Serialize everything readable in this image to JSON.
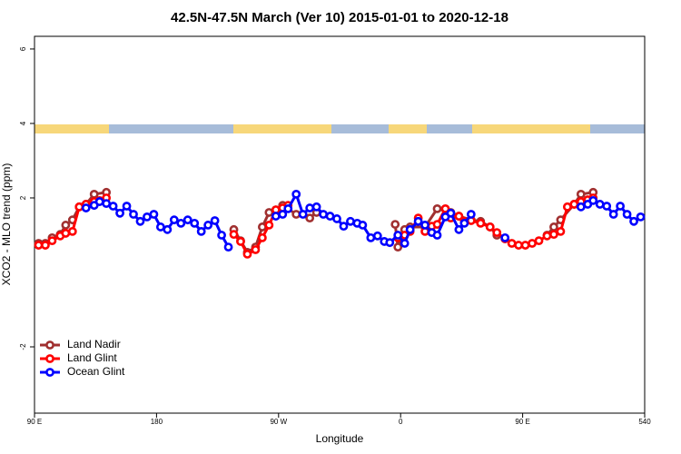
{
  "chart_data": {
    "type": "line",
    "title": "42.5N-47.5N March (Ver 10)   2015-01-01 to 2020-12-18",
    "x_label": "Longitude",
    "y_label": "XCO2 - MLO trend (ppm)",
    "xlim": [
      90,
      540
    ],
    "xticks": [
      {
        "value": 90,
        "label": "90 E"
      },
      180,
      {
        "value": 270,
        "label": "90 W"
      },
      {
        "value": 360,
        "label": "0"
      },
      {
        "value": 450,
        "label": "90 E"
      },
      540
    ],
    "ylim": [
      -3.78,
      6.34
    ],
    "yticks": [
      -2,
      2,
      4,
      6
    ],
    "legend": "bottomleft",
    "grid": false,
    "series": [
      {
        "name": "Land Nadir",
        "color": "#a03030",
        "x": [
          93,
          98,
          103,
          109,
          113,
          118,
          123,
          128,
          134,
          143,
          null,
          237,
          242,
          247,
          253,
          258,
          263,
          268,
          273,
          283,
          293,
          298,
          null,
          356,
          358,
          363,
          367,
          378,
          387,
          397,
          403,
          412,
          419,
          426,
          431,
          null,
          468,
          473,
          478,
          488,
          493,
          502
        ],
        "values": [
          0.78,
          0.78,
          0.93,
          1.02,
          1.27,
          1.41,
          1.76,
          1.83,
          2.1,
          2.15,
          null,
          1.15,
          0.85,
          0.54,
          0.68,
          1.22,
          1.61,
          1.68,
          1.8,
          1.56,
          1.46,
          1.61,
          null,
          1.29,
          0.68,
          1.15,
          1.22,
          1.22,
          1.71,
          1.61,
          1.51,
          1.41,
          1.37,
          1.22,
          1.0,
          null,
          1.0,
          1.22,
          1.41,
          1.83,
          2.1,
          2.15
        ]
      },
      {
        "name": "Land Glint",
        "color": "#ff0000",
        "x": [
          93,
          98,
          103,
          109,
          113,
          118,
          123,
          128,
          134,
          138,
          143,
          null,
          237,
          242,
          247,
          253,
          258,
          263,
          268,
          273,
          277,
          null,
          358,
          363,
          367,
          373,
          378,
          383,
          387,
          393,
          397,
          403,
          407,
          412,
          419,
          426,
          431,
          437,
          442,
          447,
          452,
          457,
          462,
          468,
          473,
          478,
          483,
          488,
          493,
          498,
          502
        ],
        "values": [
          0.73,
          0.73,
          0.85,
          0.98,
          1.05,
          1.1,
          1.76,
          1.83,
          1.9,
          1.93,
          2.0,
          null,
          1.02,
          0.83,
          0.49,
          0.61,
          0.93,
          1.27,
          1.68,
          1.73,
          1.8,
          null,
          0.93,
          1.0,
          1.1,
          1.46,
          1.1,
          1.24,
          1.29,
          1.71,
          1.46,
          1.51,
          1.37,
          1.39,
          1.32,
          1.22,
          1.07,
          0.9,
          0.78,
          0.73,
          0.73,
          0.78,
          0.85,
          0.98,
          1.02,
          1.1,
          1.76,
          1.83,
          1.9,
          1.95,
          2.0
        ]
      },
      {
        "name": "Ocean Glint",
        "color": "#0000ff",
        "x": [
          128,
          134,
          138,
          143,
          148,
          153,
          158,
          163,
          168,
          173,
          178,
          183,
          188,
          193,
          198,
          203,
          208,
          213,
          218,
          223,
          228,
          233,
          null,
          268,
          273,
          277,
          283,
          288,
          293,
          298,
          303,
          308,
          313,
          318,
          323,
          328,
          332,
          338,
          343,
          348,
          352,
          358,
          363,
          367,
          373,
          378,
          383,
          387,
          393,
          397,
          403,
          407,
          412,
          null,
          437,
          null,
          493,
          498,
          502,
          507,
          512,
          517,
          522,
          527,
          532,
          537
        ],
        "values": [
          1.73,
          1.8,
          1.9,
          1.85,
          1.78,
          1.59,
          1.78,
          1.56,
          1.37,
          1.49,
          1.56,
          1.22,
          1.15,
          1.41,
          1.32,
          1.41,
          1.32,
          1.1,
          1.27,
          1.39,
          1.0,
          0.68,
          null,
          1.51,
          1.56,
          1.71,
          2.1,
          1.56,
          1.73,
          1.76,
          1.56,
          1.51,
          1.44,
          1.24,
          1.37,
          1.32,
          1.27,
          0.93,
          0.98,
          0.83,
          0.8,
          1.0,
          0.78,
          1.15,
          1.37,
          1.27,
          1.07,
          1.0,
          1.49,
          1.59,
          1.15,
          1.32,
          1.56,
          null,
          0.93,
          null,
          1.76,
          1.83,
          1.93,
          1.83,
          1.78,
          1.56,
          1.78,
          1.56,
          1.37,
          1.49
        ]
      }
    ]
  }
}
